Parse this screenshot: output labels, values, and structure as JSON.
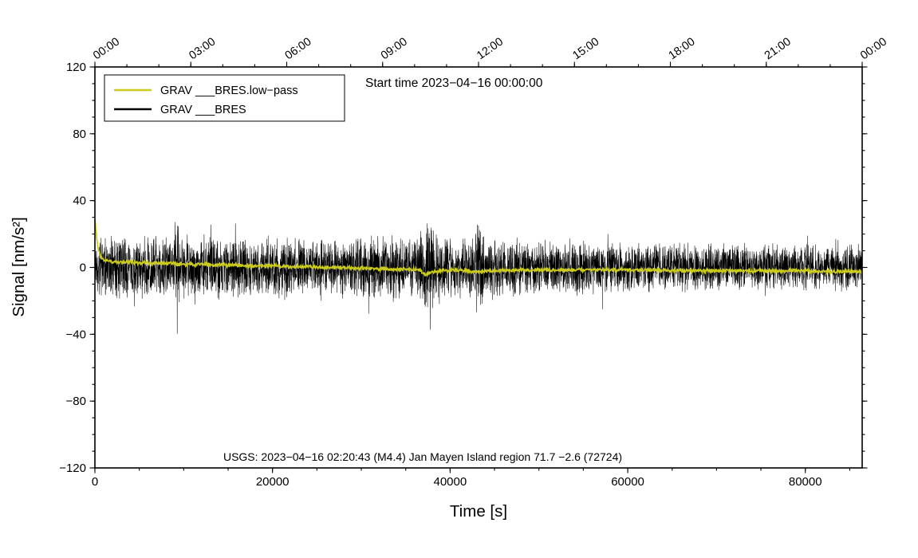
{
  "chart_data": {
    "type": "line",
    "title": "Start time 2023−04−16 00:00:00",
    "xlabel": "Time [s]",
    "ylabel": "Signal [nm/s²]",
    "annotation": "USGS: 2023−04−16 02:20:43 (M4.4) Jan Mayen Island region 71.7 −2.6 (72724)",
    "xlim": [
      0,
      86400
    ],
    "ylim": [
      -120,
      120
    ],
    "grid": false,
    "legend_position": "top-left",
    "x_ticks": [
      0,
      20000,
      40000,
      60000,
      80000
    ],
    "x_tick_labels": [
      "0",
      "20000",
      "40000",
      "60000",
      "80000"
    ],
    "x_minor_step": 5000,
    "y_ticks": [
      -120,
      -80,
      -40,
      0,
      40,
      80,
      120
    ],
    "y_tick_labels": [
      "−120",
      "−80",
      "−40",
      "0",
      "40",
      "80",
      "120"
    ],
    "y_minor_step": 10,
    "top_axis": {
      "ticks": [
        0,
        10800,
        21600,
        32400,
        43200,
        54000,
        64800,
        75600,
        86400
      ],
      "labels": [
        "00:00",
        "03:00",
        "06:00",
        "09:00",
        "12:00",
        "15:00",
        "18:00",
        "21:00",
        "00:00"
      ],
      "minor_step": 3600,
      "rotation_deg": -35
    },
    "series": [
      {
        "name": "GRAV ___BRES",
        "id": "raw",
        "color": "#000000",
        "width": 0.55,
        "style": "noise",
        "points": 5200,
        "seed": 20230416,
        "envelope": [
          [
            0,
            15
          ],
          [
            3000,
            15
          ],
          [
            6000,
            14.5
          ],
          [
            8700,
            14.5
          ],
          [
            8950,
            20
          ],
          [
            9250,
            22
          ],
          [
            9600,
            16
          ],
          [
            10500,
            15
          ],
          [
            15000,
            15
          ],
          [
            20000,
            14.5
          ],
          [
            25000,
            14.5
          ],
          [
            30000,
            15
          ],
          [
            33000,
            14.5
          ],
          [
            36600,
            15
          ],
          [
            37200,
            22
          ],
          [
            37600,
            24
          ],
          [
            38300,
            17
          ],
          [
            39300,
            15.5
          ],
          [
            41000,
            15
          ],
          [
            42700,
            15
          ],
          [
            43050,
            23
          ],
          [
            43400,
            24
          ],
          [
            43900,
            16
          ],
          [
            44900,
            15
          ],
          [
            47000,
            14
          ],
          [
            50000,
            13.5
          ],
          [
            53000,
            13
          ],
          [
            57000,
            12.5
          ],
          [
            61000,
            12.5
          ],
          [
            65000,
            12
          ],
          [
            70000,
            11.5
          ],
          [
            75000,
            11
          ],
          [
            80000,
            11
          ],
          [
            83000,
            11.5
          ],
          [
            86400,
            11.5
          ]
        ]
      },
      {
        "name": "GRAV ___BRES.low−pass",
        "id": "low-pass",
        "color": "#cbcb1d",
        "width": 1.7,
        "style": "line",
        "points": 1700,
        "seed": 77,
        "noise_amp": 1.0,
        "baseline": [
          [
            0,
            29
          ],
          [
            120,
            22
          ],
          [
            300,
            13
          ],
          [
            600,
            7
          ],
          [
            1000,
            4.5
          ],
          [
            2000,
            3.5
          ],
          [
            4000,
            3
          ],
          [
            7000,
            2.5
          ],
          [
            10000,
            2
          ],
          [
            14000,
            1.5
          ],
          [
            18000,
            1
          ],
          [
            22000,
            0.5
          ],
          [
            26000,
            0
          ],
          [
            30000,
            -0.5
          ],
          [
            34000,
            -1
          ],
          [
            36600,
            -1.5
          ],
          [
            37300,
            -4.5
          ],
          [
            37900,
            -3
          ],
          [
            39000,
            -2
          ],
          [
            41000,
            -1.5
          ],
          [
            42800,
            -2.5
          ],
          [
            43400,
            -3
          ],
          [
            44500,
            -2
          ],
          [
            47000,
            -1.5
          ],
          [
            51000,
            -1.5
          ],
          [
            55000,
            -1.5
          ],
          [
            59000,
            -1.5
          ],
          [
            63000,
            -1.5
          ],
          [
            67000,
            -2
          ],
          [
            71000,
            -2
          ],
          [
            75000,
            -2
          ],
          [
            79000,
            -2
          ],
          [
            83000,
            -2.5
          ],
          [
            86400,
            -2.5
          ]
        ]
      }
    ]
  }
}
